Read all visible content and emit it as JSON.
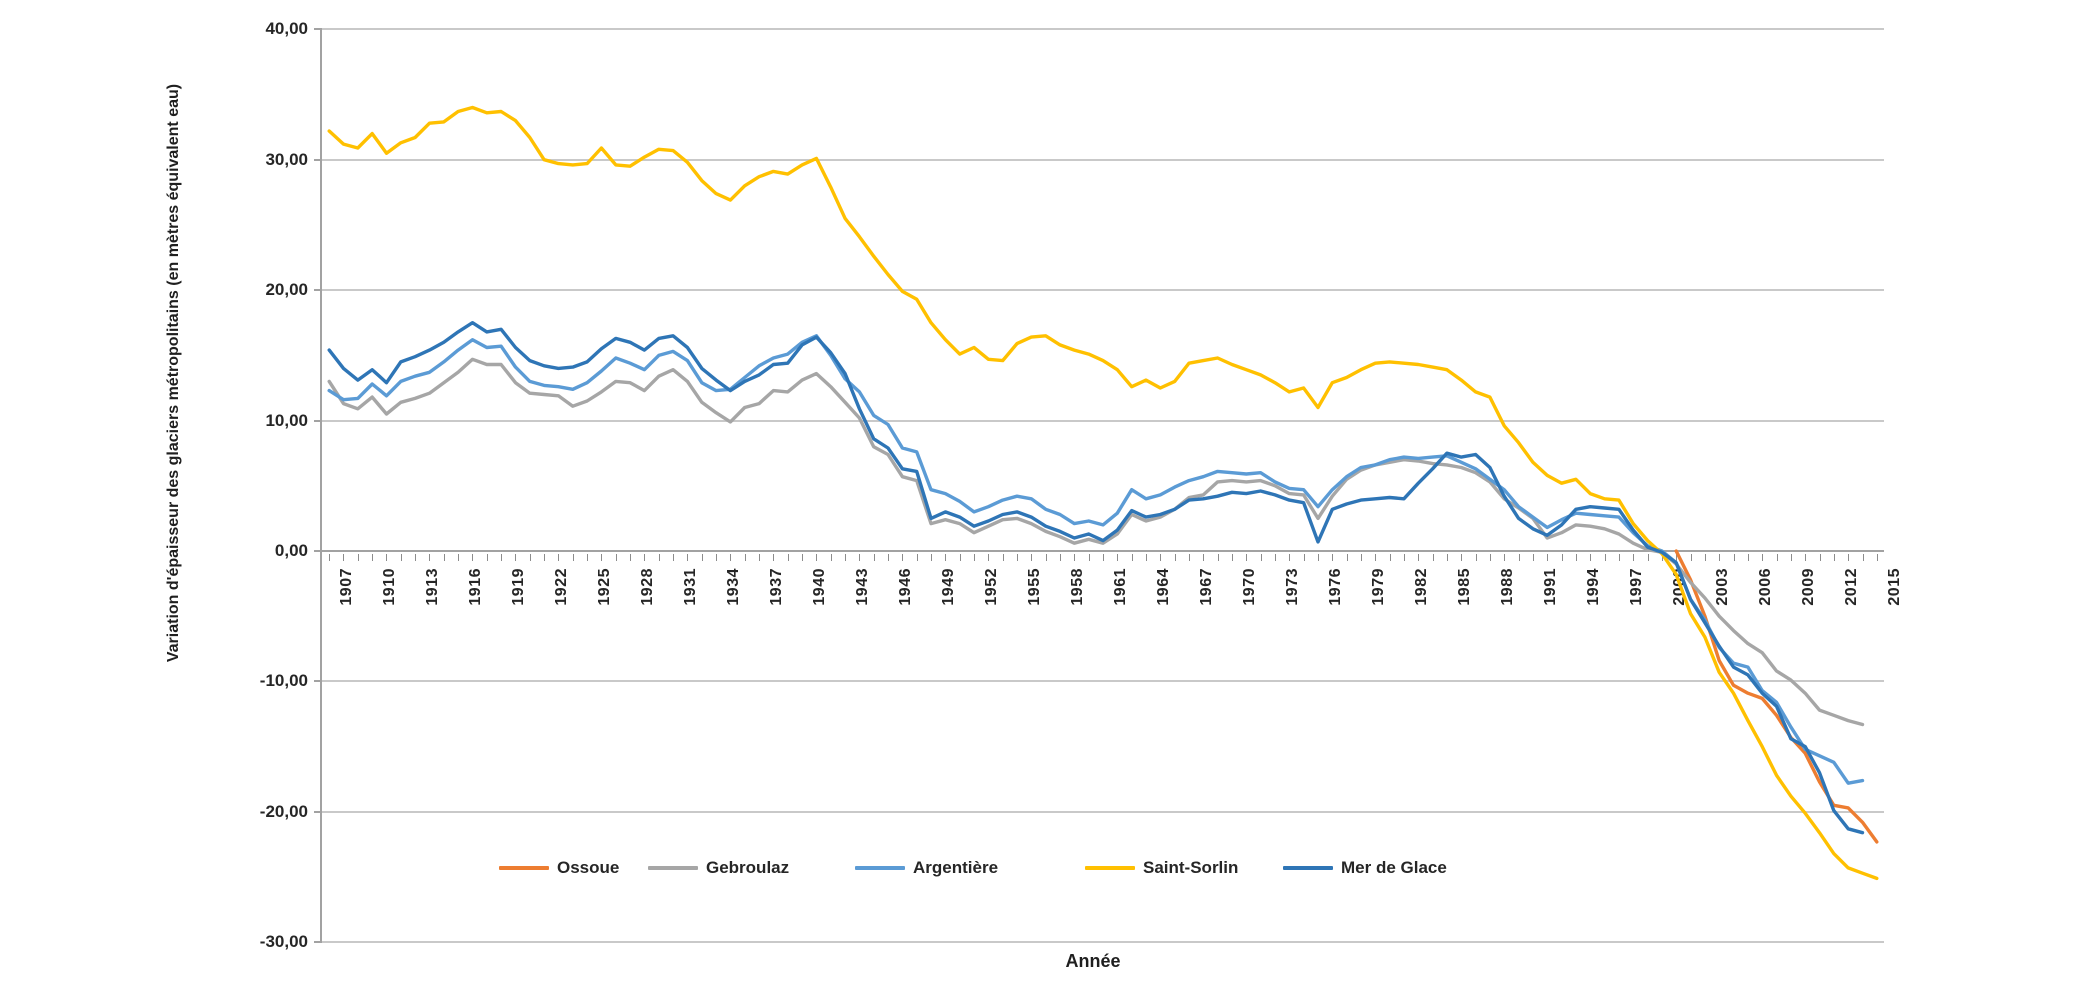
{
  "chart_data": {
    "type": "line",
    "title": "",
    "xlabel": "Année",
    "ylabel": "Variation d'épaisseur des glaciers métropolitains (en mètres équivalent eau)",
    "x_range": [
      1907,
      2015
    ],
    "ylim": [
      -30,
      40
    ],
    "grid": "horizontal",
    "legend_position": "bottom",
    "decimal_separator": ",",
    "y_ticks": [
      {
        "label": "40,00",
        "value": 40
      },
      {
        "label": "30,00",
        "value": 30
      },
      {
        "label": "20,00",
        "value": 20
      },
      {
        "label": "10,00",
        "value": 10
      },
      {
        "label": "0,00",
        "value": 0
      },
      {
        "label": "-10,00",
        "value": -10
      },
      {
        "label": "-20,00",
        "value": -20
      },
      {
        "label": "-30,00",
        "value": -30
      }
    ],
    "x_tick_years": [
      1907,
      1910,
      1913,
      1916,
      1919,
      1922,
      1925,
      1928,
      1931,
      1934,
      1937,
      1940,
      1943,
      1946,
      1949,
      1952,
      1955,
      1958,
      1961,
      1964,
      1967,
      1970,
      1973,
      1976,
      1979,
      1982,
      1985,
      1988,
      1991,
      1994,
      1997,
      2000,
      2003,
      2006,
      2009,
      2012,
      2015
    ],
    "colors": {
      "gridline": "#c9c9c9",
      "axis": "#a2a2a2",
      "text": "#262626"
    },
    "series": [
      {
        "name": "Ossoue",
        "color": "#ED7D31",
        "start_year": 2001,
        "values": [
          0.0,
          -2.2,
          -5.0,
          -8.4,
          -10.3,
          -10.9,
          -11.3,
          -12.6,
          -14.3,
          -15.5,
          -17.7,
          -19.5,
          -19.7,
          -20.8,
          -22.3
        ]
      },
      {
        "name": "Gebroulaz",
        "color": "#A6A6A6",
        "start_year": 1907,
        "values": [
          13.0,
          11.3,
          10.9,
          11.8,
          10.5,
          11.4,
          11.7,
          12.1,
          12.9,
          13.7,
          14.7,
          14.3,
          14.3,
          12.9,
          12.1,
          12.0,
          11.9,
          11.1,
          11.5,
          12.2,
          13.0,
          12.9,
          12.3,
          13.4,
          13.9,
          13.0,
          11.4,
          10.6,
          9.9,
          11.0,
          11.3,
          12.3,
          12.2,
          13.1,
          13.6,
          12.6,
          11.4,
          10.2,
          8.0,
          7.4,
          5.7,
          5.4,
          2.1,
          2.4,
          2.1,
          1.4,
          1.9,
          2.4,
          2.5,
          2.1,
          1.5,
          1.1,
          0.6,
          0.9,
          0.6,
          1.3,
          2.8,
          2.3,
          2.6,
          3.2,
          4.1,
          4.3,
          5.3,
          5.4,
          5.3,
          5.4,
          5.0,
          4.4,
          4.3,
          2.5,
          4.2,
          5.5,
          6.2,
          6.6,
          6.8,
          7.0,
          6.9,
          6.7,
          6.6,
          6.4,
          6.0,
          5.3,
          4.0,
          3.3,
          2.5,
          1.0,
          1.4,
          2.0,
          1.9,
          1.7,
          1.3,
          0.6,
          0.1,
          -0.1,
          -1.0,
          -2.4,
          -3.6,
          -5.0,
          -6.1,
          -7.1,
          -7.8,
          -9.2,
          -9.9,
          -10.9,
          -12.2,
          -12.6,
          -13.0,
          -13.3
        ]
      },
      {
        "name": "Argentière",
        "color": "#5B9BD5",
        "start_year": 1907,
        "values": [
          12.3,
          11.6,
          11.7,
          12.8,
          11.9,
          13.0,
          13.4,
          13.7,
          14.5,
          15.4,
          16.2,
          15.6,
          15.7,
          14.1,
          13.0,
          12.7,
          12.6,
          12.4,
          12.9,
          13.8,
          14.8,
          14.4,
          13.9,
          15.0,
          15.3,
          14.6,
          12.9,
          12.3,
          12.4,
          13.3,
          14.2,
          14.8,
          15.1,
          16.0,
          16.5,
          15.0,
          13.2,
          12.2,
          10.4,
          9.7,
          7.9,
          7.6,
          4.7,
          4.4,
          3.8,
          3.0,
          3.4,
          3.9,
          4.2,
          4.0,
          3.2,
          2.8,
          2.1,
          2.3,
          2.0,
          2.9,
          4.7,
          4.0,
          4.3,
          4.9,
          5.4,
          5.7,
          6.1,
          6.0,
          5.9,
          6.0,
          5.3,
          4.8,
          4.7,
          3.4,
          4.7,
          5.7,
          6.4,
          6.6,
          7.0,
          7.2,
          7.1,
          7.2,
          7.3,
          6.8,
          6.3,
          5.5,
          4.7,
          3.4,
          2.6,
          1.8,
          2.4,
          2.9,
          2.8,
          2.7,
          2.6,
          1.4,
          0.4,
          0.0,
          -0.9,
          -3.7,
          -5.3,
          -7.4,
          -8.6,
          -8.9,
          -10.7,
          -11.6,
          -13.5,
          -15.2,
          -15.7,
          -16.2,
          -17.8,
          -17.6
        ]
      },
      {
        "name": "Saint-Sorlin",
        "color": "#FFC000",
        "start_year": 1907,
        "values": [
          32.2,
          31.2,
          30.9,
          32.0,
          30.5,
          31.3,
          31.7,
          32.8,
          32.9,
          33.7,
          34.0,
          33.6,
          33.7,
          33.0,
          31.7,
          30.0,
          29.7,
          29.6,
          29.7,
          30.9,
          29.6,
          29.5,
          30.2,
          30.8,
          30.7,
          29.8,
          28.4,
          27.4,
          26.9,
          28.0,
          28.7,
          29.1,
          28.9,
          29.6,
          30.1,
          27.9,
          25.5,
          24.1,
          22.6,
          21.2,
          19.9,
          19.3,
          17.5,
          16.2,
          15.1,
          15.6,
          14.7,
          14.6,
          15.9,
          16.4,
          16.5,
          15.8,
          15.4,
          15.1,
          14.6,
          13.9,
          12.6,
          13.1,
          12.5,
          13.0,
          14.4,
          14.6,
          14.8,
          14.3,
          13.9,
          13.5,
          12.9,
          12.2,
          12.5,
          11.0,
          12.9,
          13.3,
          13.9,
          14.4,
          14.5,
          14.4,
          14.3,
          14.1,
          13.9,
          13.1,
          12.2,
          11.8,
          9.6,
          8.3,
          6.8,
          5.8,
          5.2,
          5.5,
          4.4,
          4.0,
          3.9,
          2.1,
          0.8,
          -0.2,
          -1.8,
          -4.8,
          -6.6,
          -9.3,
          -10.9,
          -13.0,
          -15.0,
          -17.2,
          -18.8,
          -20.1,
          -21.6,
          -23.2,
          -24.3,
          -24.7,
          -25.1
        ]
      },
      {
        "name": "Mer de Glace",
        "color": "#2E75B6",
        "start_year": 1907,
        "values": [
          15.4,
          14.0,
          13.1,
          13.9,
          12.9,
          14.5,
          14.9,
          15.4,
          16.0,
          16.8,
          17.5,
          16.8,
          17.0,
          15.6,
          14.6,
          14.2,
          14.0,
          14.1,
          14.5,
          15.5,
          16.3,
          16.0,
          15.4,
          16.3,
          16.5,
          15.6,
          14.0,
          13.1,
          12.3,
          13.0,
          13.5,
          14.3,
          14.4,
          15.8,
          16.4,
          15.2,
          13.6,
          10.9,
          8.6,
          7.9,
          6.3,
          6.1,
          2.5,
          3.0,
          2.6,
          1.9,
          2.3,
          2.8,
          3.0,
          2.6,
          1.9,
          1.5,
          1.0,
          1.3,
          0.8,
          1.6,
          3.1,
          2.6,
          2.8,
          3.2,
          3.9,
          4.0,
          4.2,
          4.5,
          4.4,
          4.6,
          4.3,
          3.9,
          3.7,
          0.7,
          3.2,
          3.6,
          3.9,
          4.0,
          4.1,
          4.0,
          5.2,
          6.3,
          7.5,
          7.2,
          7.4,
          6.4,
          4.2,
          2.5,
          1.7,
          1.2,
          2.0,
          3.2,
          3.4,
          3.3,
          3.2,
          1.6,
          0.3,
          -0.1,
          -0.9,
          -3.7,
          -5.5,
          -7.3,
          -8.9,
          -9.5,
          -10.9,
          -11.9,
          -14.4,
          -15.0,
          -17.0,
          -19.9,
          -21.3,
          -21.6
        ]
      }
    ]
  }
}
